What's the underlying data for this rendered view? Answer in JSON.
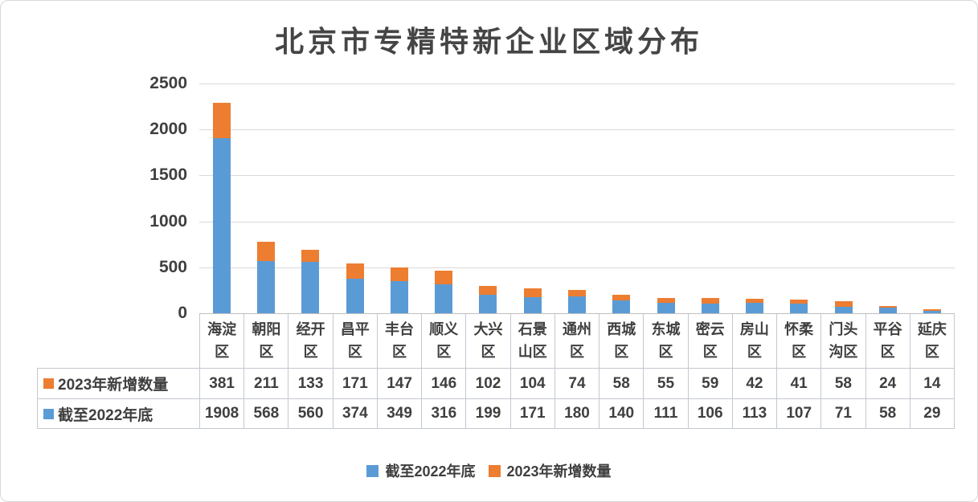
{
  "title": "北京市专精特新企业区域分布",
  "chart_data": {
    "type": "bar",
    "stacked": true,
    "title": "北京市专精特新企业区域分布",
    "categories": [
      "海淀区",
      "朝阳区",
      "经开区",
      "昌平区",
      "丰台区",
      "顺义区",
      "大兴区",
      "石景山区",
      "通州区",
      "西城区",
      "东城区",
      "密云区",
      "房山区",
      "怀柔区",
      "门头沟区",
      "平谷区",
      "延庆区"
    ],
    "series": [
      {
        "name": "截至2022年底",
        "color": "#5B9BD5",
        "values": [
          1908,
          568,
          560,
          374,
          349,
          316,
          199,
          171,
          180,
          140,
          111,
          106,
          113,
          107,
          71,
          58,
          29
        ]
      },
      {
        "name": "2023年新增数量",
        "color": "#ED7D31",
        "values": [
          381,
          211,
          133,
          171,
          147,
          146,
          102,
          104,
          74,
          58,
          55,
          59,
          42,
          41,
          58,
          24,
          14
        ]
      }
    ],
    "ylim": [
      0,
      2500
    ],
    "yticks": [
      0,
      500,
      1000,
      1500,
      2000,
      2500
    ],
    "grid": true,
    "legend_position": "bottom",
    "data_table_shown": true,
    "data_table_row_order": [
      "2023年新增数量",
      "截至2022年底"
    ]
  },
  "colors": {
    "series_blue": "#5B9BD5",
    "series_orange": "#ED7D31",
    "gridline": "#D9D9D9",
    "axis_line": "#C0C0C0",
    "table_border": "#C4C9D1",
    "text": "#3F3F3F"
  }
}
